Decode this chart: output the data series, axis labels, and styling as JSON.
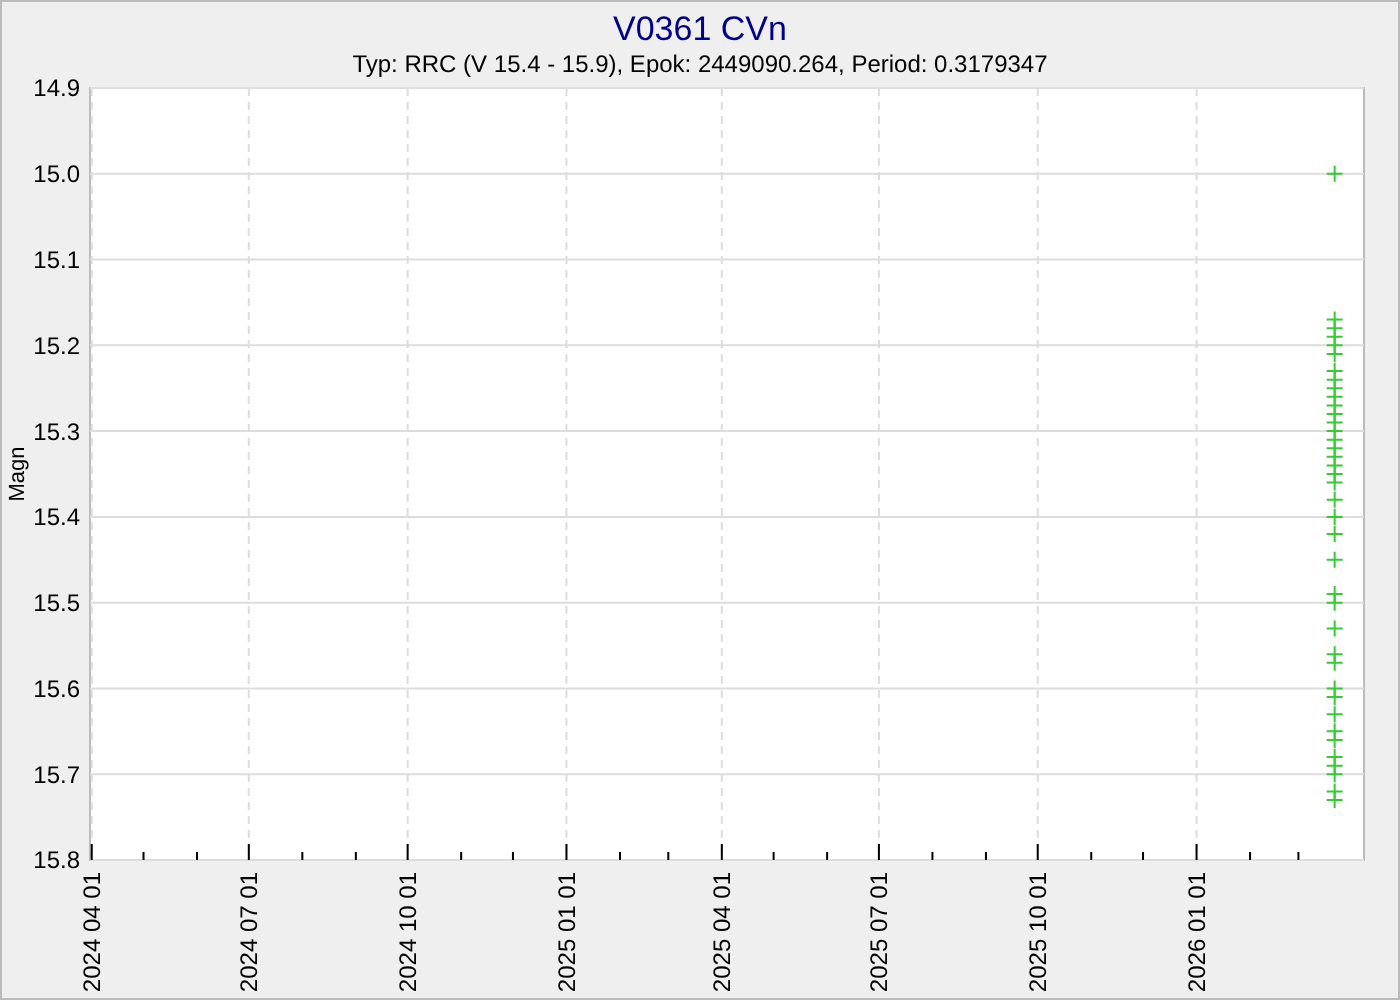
{
  "chart_data": {
    "type": "scatter",
    "title": "V0361 CVn",
    "subtitle": "Typ: RRC (V 15.4 - 15.9), Epok: 2449090.264, Period: 0.3179347",
    "ylabel": "Magn",
    "xlim": [
      "2024-03-31",
      "2026-04-08"
    ],
    "xticks": [
      {
        "value": "2024-04-01",
        "label": "2024 04 01"
      },
      {
        "value": "2024-05-01",
        "label": null
      },
      {
        "value": "2024-06-01",
        "label": null
      },
      {
        "value": "2024-07-01",
        "label": "2024 07 01"
      },
      {
        "value": "2024-08-01",
        "label": null
      },
      {
        "value": "2024-09-01",
        "label": null
      },
      {
        "value": "2024-10-01",
        "label": "2024 10 01"
      },
      {
        "value": "2024-11-01",
        "label": null
      },
      {
        "value": "2024-12-01",
        "label": null
      },
      {
        "value": "2025-01-01",
        "label": "2025 01 01"
      },
      {
        "value": "2025-02-01",
        "label": null
      },
      {
        "value": "2025-03-01",
        "label": null
      },
      {
        "value": "2025-04-01",
        "label": "2025 04 01"
      },
      {
        "value": "2025-05-01",
        "label": null
      },
      {
        "value": "2025-06-01",
        "label": null
      },
      {
        "value": "2025-07-01",
        "label": "2025 07 01"
      },
      {
        "value": "2025-08-01",
        "label": null
      },
      {
        "value": "2025-09-01",
        "label": null
      },
      {
        "value": "2025-10-01",
        "label": "2025 10 01"
      },
      {
        "value": "2025-11-01",
        "label": null
      },
      {
        "value": "2025-12-01",
        "label": null
      },
      {
        "value": "2026-01-01",
        "label": "2026 01 01"
      },
      {
        "value": "2026-02-01",
        "label": null
      },
      {
        "value": "2026-03-01",
        "label": null
      }
    ],
    "ylim": [
      15.8,
      14.9
    ],
    "yticks": [
      14.9,
      {
        "value": 15,
        "label": "15.0"
      },
      15.1,
      15.2,
      15.3,
      15.4,
      15.5,
      15.6,
      15.7,
      15.8
    ],
    "grid": true,
    "marker": "cross",
    "series": [
      {
        "color": "#33cc33",
        "x": [
          "2026-03-22",
          "2026-03-22",
          "2026-03-22",
          "2026-03-22",
          "2026-03-22",
          "2026-03-22",
          "2026-03-22",
          "2026-03-22",
          "2026-03-22",
          "2026-03-22",
          "2026-03-22",
          "2026-03-22",
          "2026-03-22",
          "2026-03-22",
          "2026-03-22",
          "2026-03-22",
          "2026-03-22",
          "2026-03-22",
          "2026-03-22",
          "2026-03-22",
          "2026-03-22",
          "2026-03-22",
          "2026-03-22",
          "2026-03-22",
          "2026-03-22",
          "2026-03-22",
          "2026-03-22",
          "2026-03-22",
          "2026-03-22",
          "2026-03-22",
          "2026-03-22",
          "2026-03-22",
          "2026-03-22",
          "2026-03-22",
          "2026-03-22",
          "2026-03-22",
          "2026-03-22",
          "2026-03-22",
          "2026-03-22"
        ],
        "values": [
          15.0,
          15.17,
          15.18,
          15.19,
          15.2,
          15.21,
          15.23,
          15.24,
          15.25,
          15.26,
          15.27,
          15.28,
          15.29,
          15.3,
          15.31,
          15.32,
          15.33,
          15.34,
          15.35,
          15.36,
          15.38,
          15.4,
          15.42,
          15.45,
          15.49,
          15.5,
          15.53,
          15.56,
          15.57,
          15.6,
          15.61,
          15.63,
          15.65,
          15.66,
          15.68,
          15.69,
          15.7,
          15.72,
          15.73
        ]
      }
    ]
  }
}
